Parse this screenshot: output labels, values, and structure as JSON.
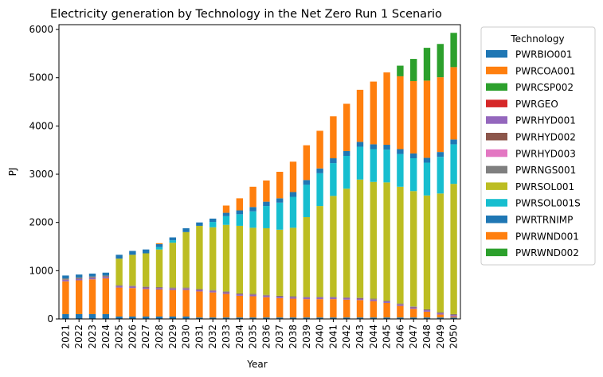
{
  "chart_data": {
    "type": "bar",
    "stacked": true,
    "title": "Electricity generation by Technology in the Net Zero Run 1 Scenario",
    "xlabel": "Year",
    "ylabel": "PJ",
    "ylim": [
      0,
      6100
    ],
    "yticks": [
      0,
      1000,
      2000,
      3000,
      4000,
      5000,
      6000
    ],
    "legend_title": "Technology",
    "legend_position": "outside-right",
    "grid": false,
    "categories": [
      "2021",
      "2022",
      "2023",
      "2024",
      "2025",
      "2026",
      "2027",
      "2028",
      "2029",
      "2030",
      "2031",
      "2032",
      "2033",
      "2034",
      "2035",
      "2036",
      "2037",
      "2038",
      "2039",
      "2040",
      "2041",
      "2042",
      "2043",
      "2044",
      "2045",
      "2046",
      "2047",
      "2048",
      "2049",
      "2050"
    ],
    "series": [
      {
        "name": "PWRBIO001",
        "color": "#1f77b4",
        "values": [
          100,
          100,
          100,
          100,
          50,
          50,
          50,
          50,
          50,
          50,
          30,
          30,
          30,
          30,
          30,
          30,
          30,
          30,
          30,
          30,
          30,
          30,
          30,
          30,
          30,
          30,
          30,
          30,
          30,
          30
        ]
      },
      {
        "name": "PWRCOA001",
        "color": "#ff7f0e",
        "values": [
          680,
          700,
          720,
          740,
          600,
          590,
          570,
          560,
          550,
          550,
          540,
          520,
          490,
          450,
          440,
          420,
          400,
          390,
          380,
          380,
          380,
          370,
          360,
          340,
          300,
          240,
          180,
          120,
          60,
          20
        ]
      },
      {
        "name": "PWRCSP002",
        "color": "#2ca02c",
        "values": [
          0,
          0,
          0,
          0,
          0,
          0,
          0,
          0,
          0,
          0,
          0,
          0,
          0,
          0,
          0,
          0,
          0,
          0,
          0,
          0,
          0,
          0,
          0,
          0,
          0,
          0,
          0,
          0,
          0,
          0
        ]
      },
      {
        "name": "PWRGEO",
        "color": "#d62728",
        "values": [
          0,
          0,
          0,
          0,
          0,
          0,
          0,
          0,
          0,
          0,
          0,
          0,
          0,
          0,
          0,
          0,
          0,
          0,
          0,
          0,
          0,
          0,
          0,
          0,
          0,
          0,
          0,
          0,
          0,
          0
        ]
      },
      {
        "name": "PWRHYD001",
        "color": "#9467bd",
        "values": [
          30,
          30,
          30,
          30,
          30,
          30,
          30,
          30,
          30,
          30,
          30,
          30,
          30,
          30,
          30,
          30,
          30,
          30,
          30,
          30,
          30,
          30,
          30,
          30,
          30,
          30,
          30,
          30,
          30,
          30
        ]
      },
      {
        "name": "PWRHYD002",
        "color": "#8c564b",
        "values": [
          10,
          10,
          10,
          10,
          10,
          10,
          10,
          10,
          10,
          10,
          10,
          10,
          10,
          10,
          10,
          10,
          10,
          10,
          10,
          10,
          10,
          10,
          10,
          10,
          10,
          10,
          10,
          10,
          10,
          10
        ]
      },
      {
        "name": "PWRHYD003",
        "color": "#e377c2",
        "values": [
          0,
          0,
          0,
          0,
          0,
          0,
          0,
          0,
          0,
          0,
          0,
          0,
          0,
          0,
          0,
          0,
          0,
          0,
          0,
          0,
          0,
          0,
          0,
          0,
          0,
          0,
          0,
          0,
          0,
          0
        ]
      },
      {
        "name": "PWRNGS001",
        "color": "#7f7f7f",
        "values": [
          20,
          20,
          20,
          20,
          10,
          10,
          10,
          10,
          10,
          10,
          10,
          10,
          10,
          10,
          10,
          10,
          10,
          10,
          10,
          10,
          10,
          10,
          10,
          10,
          10,
          10,
          10,
          10,
          10,
          10
        ]
      },
      {
        "name": "PWRSOL001",
        "color": "#bcbd22",
        "values": [
          0,
          0,
          0,
          0,
          550,
          640,
          690,
          780,
          930,
          1150,
          1310,
          1300,
          1380,
          1400,
          1370,
          1380,
          1370,
          1420,
          1650,
          1880,
          2090,
          2250,
          2450,
          2420,
          2450,
          2420,
          2390,
          2360,
          2460,
          2700
        ]
      },
      {
        "name": "PWRSOL001S",
        "color": "#17becf",
        "values": [
          0,
          0,
          0,
          0,
          0,
          0,
          0,
          50,
          50,
          0,
          0,
          110,
          180,
          240,
          340,
          460,
          560,
          640,
          670,
          680,
          680,
          680,
          680,
          680,
          680,
          680,
          680,
          680,
          760,
          820
        ]
      },
      {
        "name": "PWRTRNIMP",
        "color": "#1f77b4",
        "values": [
          60,
          60,
          60,
          60,
          80,
          80,
          80,
          60,
          60,
          80,
          70,
          70,
          70,
          80,
          90,
          90,
          90,
          100,
          100,
          100,
          100,
          100,
          100,
          100,
          100,
          100,
          100,
          100,
          100,
          100
        ]
      },
      {
        "name": "PWRWND001",
        "color": "#ff7f0e",
        "values": [
          0,
          0,
          0,
          0,
          0,
          0,
          0,
          20,
          0,
          0,
          0,
          0,
          150,
          250,
          420,
          440,
          550,
          630,
          720,
          780,
          870,
          980,
          1080,
          1300,
          1500,
          1510,
          1500,
          1600,
          1550,
          1500
        ]
      },
      {
        "name": "PWRWND002",
        "color": "#2ca02c",
        "values": [
          0,
          0,
          0,
          0,
          0,
          0,
          0,
          0,
          0,
          0,
          0,
          0,
          0,
          0,
          0,
          0,
          0,
          0,
          0,
          0,
          0,
          0,
          0,
          0,
          0,
          220,
          460,
          680,
          690,
          710
        ]
      }
    ]
  }
}
